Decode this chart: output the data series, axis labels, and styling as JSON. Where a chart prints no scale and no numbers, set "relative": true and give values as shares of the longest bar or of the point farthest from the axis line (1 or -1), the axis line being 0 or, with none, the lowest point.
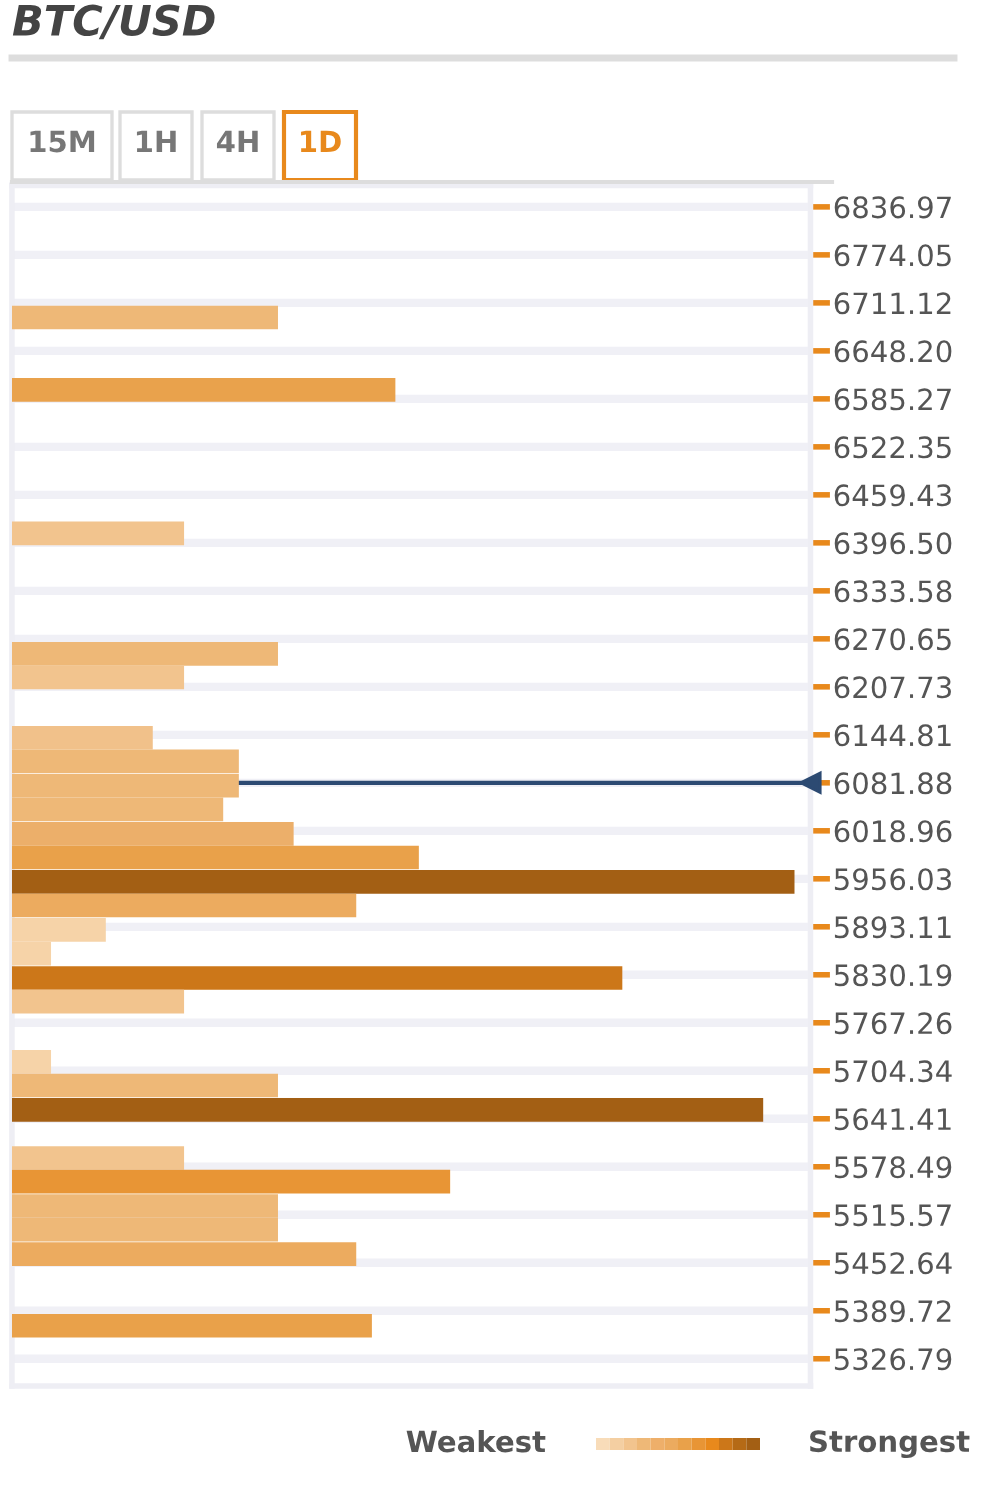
{
  "chart_data": {
    "type": "bar",
    "orientation": "horizontal",
    "relative": true,
    "title": "BTC/USD",
    "x": [
      6692,
      6597,
      6409,
      6251,
      6220,
      6141,
      6110,
      6078,
      6047,
      6015,
      5984,
      5952,
      5921,
      5889,
      5858,
      5826,
      5795,
      5716,
      5685,
      5653,
      5590,
      5559,
      5527,
      5496,
      5464,
      5370
    ],
    "values": [
      0.34,
      0.49,
      0.22,
      0.34,
      0.22,
      0.18,
      0.29,
      0.29,
      0.27,
      0.36,
      0.52,
      1,
      0.44,
      0.12,
      0.05,
      0.78,
      0.22,
      0.05,
      0.34,
      0.96,
      0.22,
      0.56,
      0.34,
      0.34,
      0.44,
      0.46
    ],
    "colors": [
      "#eeb877",
      "#e9a24c",
      "#f2c48e",
      "#eeb877",
      "#f2c48e",
      "#f1c18a",
      "#eeb877",
      "#eeb877",
      "#eeb877",
      "#ecaf6a",
      "#e9a14a",
      "#a35f14",
      "#ecab5f",
      "#f6d3a8",
      "#f6d3a8",
      "#cc7719",
      "#f2c48e",
      "#f6d3a8",
      "#eeb877",
      "#a35f14",
      "#f2c48e",
      "#e89535",
      "#eeb877",
      "#eeb877",
      "#ecab5f",
      "#e9a14a"
    ],
    "ylim": [
      5291,
      6865
    ],
    "yticks": [
      6836.97,
      6774.05,
      6711.12,
      {
        "value": 6648.2,
        "label": "6648.20"
      },
      6585.27,
      6522.35,
      6459.43,
      {
        "value": 6396.5,
        "label": "6396.50"
      },
      6333.58,
      6270.65,
      6207.73,
      6144.81,
      6081.88,
      6018.96,
      5956.03,
      5893.11,
      5830.19,
      5767.26,
      5704.34,
      5641.41,
      5578.49,
      5515.57,
      5452.64,
      5389.72,
      5326.79
    ],
    "ref_lines": [
      {
        "axis": "y",
        "value": 6081.88,
        "color": "#2c4a72"
      }
    ],
    "grid": "y",
    "annotations": [
      "15M",
      "1H",
      "4H",
      "1D",
      "Weakest",
      "Strongest"
    ]
  }
}
